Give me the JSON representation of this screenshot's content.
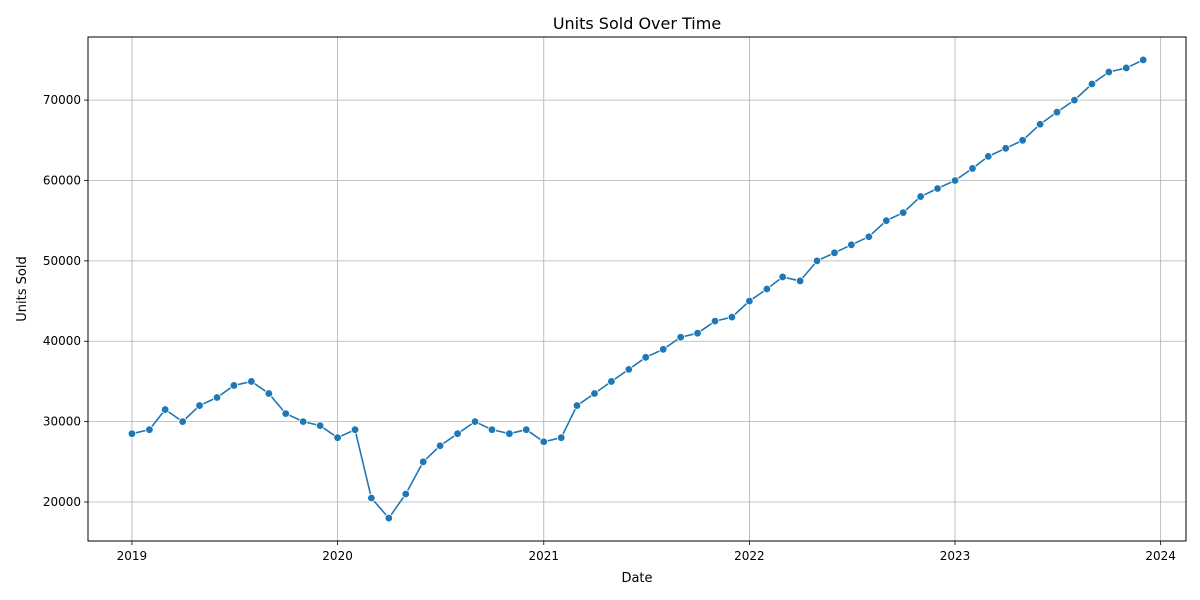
{
  "chart_data": {
    "type": "line",
    "title": "Units Sold Over Time",
    "xlabel": "Date",
    "ylabel": "Units Sold",
    "grid": true,
    "line_color": "#1f77b4",
    "x_ticks": [
      "2019",
      "2020",
      "2021",
      "2022",
      "2023",
      "2024"
    ],
    "y_ticks": [
      20000,
      30000,
      40000,
      50000,
      60000,
      70000
    ],
    "xlim": [
      "2018-10-15",
      "2024-02-15"
    ],
    "ylim": [
      15150,
      77850
    ],
    "series": [
      {
        "x": [
          "2019-01",
          "2019-02",
          "2019-03",
          "2019-04",
          "2019-05",
          "2019-06",
          "2019-07",
          "2019-08",
          "2019-09",
          "2019-10",
          "2019-11",
          "2019-12",
          "2020-01",
          "2020-02",
          "2020-03",
          "2020-04",
          "2020-05",
          "2020-06",
          "2020-07",
          "2020-08",
          "2020-09",
          "2020-10",
          "2020-11",
          "2020-12",
          "2021-01",
          "2021-02",
          "2021-03",
          "2021-04",
          "2021-05",
          "2021-06",
          "2021-07",
          "2021-08",
          "2021-09",
          "2021-10",
          "2021-11",
          "2021-12",
          "2022-01",
          "2022-02",
          "2022-03",
          "2022-04",
          "2022-05",
          "2022-06",
          "2022-07",
          "2022-08",
          "2022-09",
          "2022-10",
          "2022-11",
          "2022-12",
          "2023-01",
          "2023-02",
          "2023-03",
          "2023-04",
          "2023-05",
          "2023-06",
          "2023-07",
          "2023-08",
          "2023-09",
          "2023-10",
          "2023-11",
          "2023-12"
        ],
        "values": [
          28500,
          29000,
          31500,
          30000,
          32000,
          33000,
          34500,
          35000,
          33500,
          31000,
          30000,
          29500,
          28000,
          29000,
          20500,
          18000,
          21000,
          25000,
          27000,
          28500,
          30000,
          29000,
          28500,
          29000,
          27500,
          28000,
          32000,
          33500,
          35000,
          36500,
          38000,
          39000,
          40500,
          41000,
          42500,
          43000,
          45000,
          46500,
          48000,
          47500,
          50000,
          51000,
          52000,
          53000,
          55000,
          56000,
          58000,
          59000,
          60000,
          61500,
          63000,
          64000,
          65000,
          67000,
          68500,
          70000,
          72000,
          73500,
          74000,
          75000
        ]
      }
    ]
  }
}
